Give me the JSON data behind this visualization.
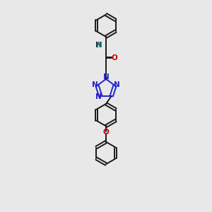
{
  "bg_color": "#e8e8e8",
  "bond_color": "#1a1a1a",
  "N_color": "#2222cc",
  "O_color": "#cc0000",
  "NH_color": "#007070",
  "lw": 1.4,
  "dbo": 0.018,
  "figsize": [
    3.0,
    3.0
  ],
  "dpi": 100,
  "xlim": [
    0.25,
    0.85
  ],
  "ylim": [
    0.05,
    2.95
  ]
}
